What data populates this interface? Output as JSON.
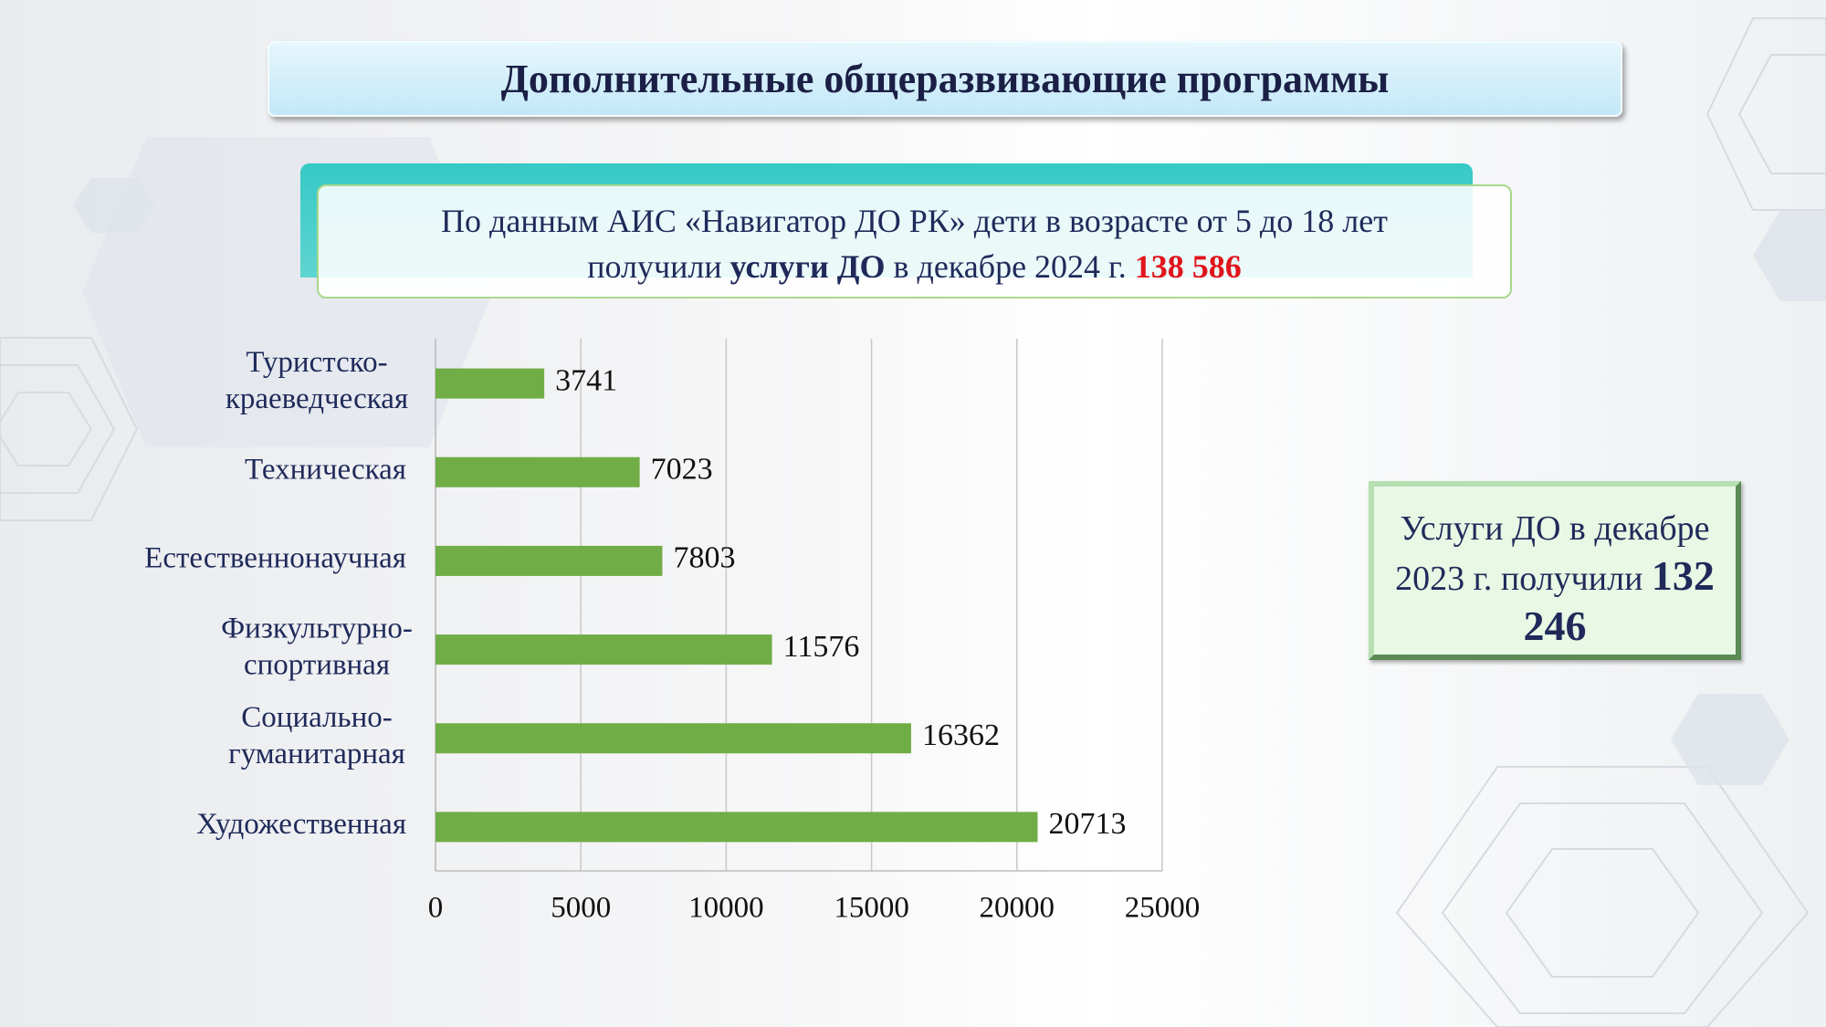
{
  "header": {
    "title": "Дополнительные общеразвивающие программы"
  },
  "info": {
    "line1": "По данным АИС «Навигатор ДО РК» дети в возрасте от 5 до 18 лет",
    "line2_start": "получили ",
    "line2_bold": "услуги ДО",
    "line2_middle": " в декабре 2024 г. ",
    "line2_total": "138 586"
  },
  "side_box": {
    "text": "Услуги ДО в декабре 2023 г. получили",
    "total": "132 246"
  },
  "chart_data": {
    "type": "bar",
    "orientation": "horizontal",
    "categories": [
      [
        "Туристско-",
        "краеведческая"
      ],
      [
        "Техническая"
      ],
      [
        "Естественнонаучная"
      ],
      [
        "Физкультурно-",
        "спортивная"
      ],
      [
        "Социально-",
        "гуманитарная"
      ],
      [
        "Художественная"
      ]
    ],
    "values": [
      3741,
      7023,
      7803,
      11576,
      16362,
      20713
    ],
    "color": "#70ad47",
    "xlim": [
      0,
      25000
    ],
    "xticks": [
      0,
      5000,
      10000,
      15000,
      20000,
      25000
    ],
    "grid": true
  }
}
